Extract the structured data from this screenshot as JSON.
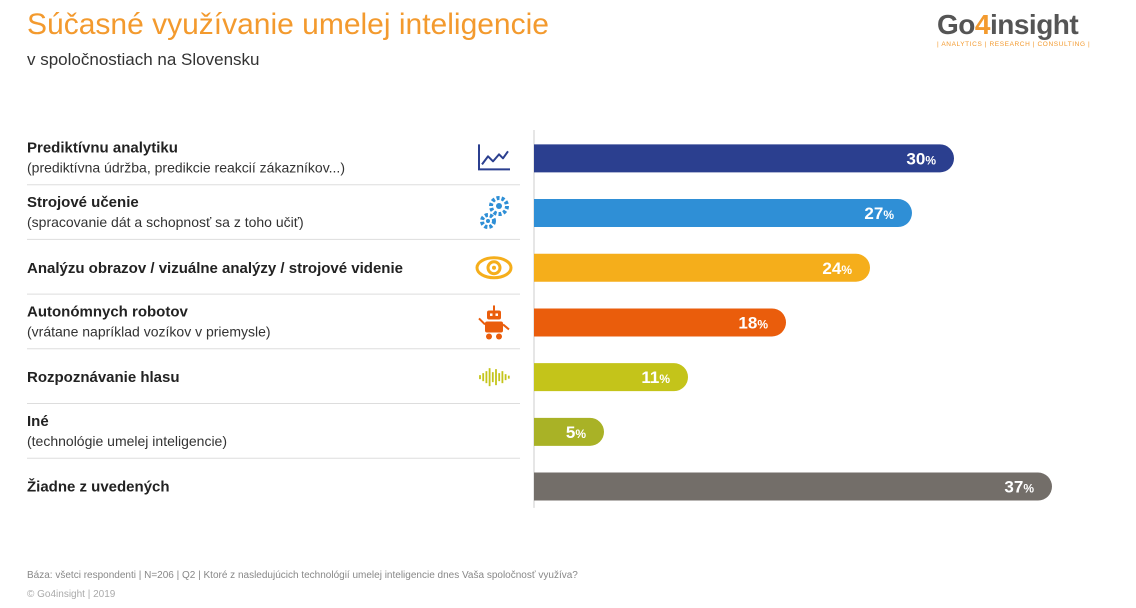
{
  "header": {
    "title": "Súčasné využívanie umelej inteligencie",
    "subtitle": "v spoločnostiach na Slovensku"
  },
  "logo": {
    "prefix": "Go",
    "four": "4",
    "suffix": "insight",
    "tagline": "| ANALYTICS | RESEARCH | CONSULTING |"
  },
  "chart_data": {
    "type": "bar",
    "orientation": "horizontal",
    "categories": [
      "Prediktívnu analytiku",
      "Strojové učenie",
      "Analýzu obrazov / vizuálne analýzy / strojové videnie",
      "Autonómnych robotov",
      "Rozpoznávanie hlasu",
      "Iné",
      "Žiadne z uvedených"
    ],
    "sublabels": [
      "(prediktívna údržba, predikcie reakcií zákazníkov...)",
      "(spracovanie dát a schopnosť sa z toho učiť)",
      "",
      "(vrátane napríklad vozíkov v priemysle)",
      "",
      "(technológie umelej inteligencie)",
      ""
    ],
    "icons": [
      "trend-line-icon",
      "gears-icon",
      "eye-icon",
      "robot-icon",
      "sound-wave-icon",
      "",
      ""
    ],
    "values": [
      30,
      27,
      24,
      18,
      11,
      5,
      37
    ],
    "unit": "%",
    "colors": [
      "#2b3f8f",
      "#2f8fd6",
      "#f5ae1b",
      "#ea5d0c",
      "#c4c41a",
      "#a9b226",
      "#736e69"
    ],
    "xlim": [
      0,
      40
    ],
    "grid": false,
    "legend": "none"
  },
  "footer": {
    "note": "Báza: všetci respondenti | N=206 | Q2 | Ktoré z nasledujúcich technológií umelej inteligencie dnes Vaša spoločnosť využíva?",
    "copyright": "© Go4insight | 2019"
  }
}
